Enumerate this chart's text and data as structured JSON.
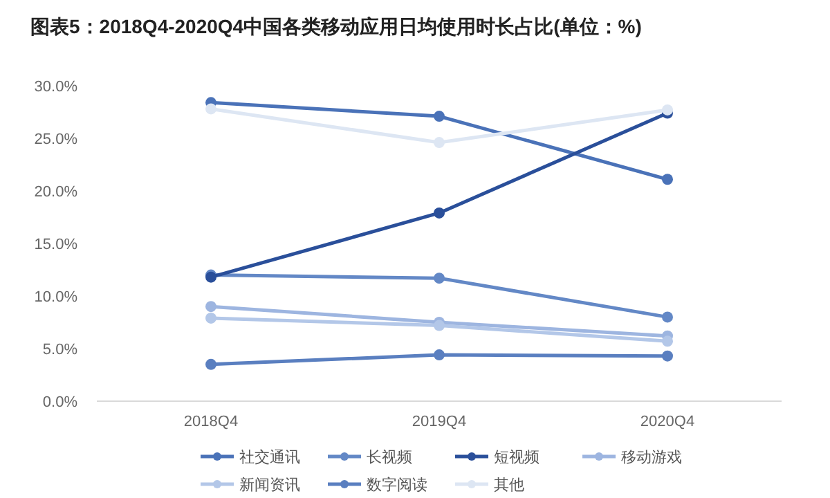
{
  "chart_data": {
    "type": "line",
    "title": "图表5：2018Q4-2020Q4中国各类移动应用日均使用时长占比(单位：%)",
    "categories": [
      "2018Q4",
      "2019Q4",
      "2020Q4"
    ],
    "series": [
      {
        "name": "社交通讯",
        "color": "#4a72b8",
        "values": [
          28.4,
          27.1,
          21.1
        ]
      },
      {
        "name": "长视频",
        "color": "#6388c6",
        "values": [
          12.0,
          11.7,
          8.0
        ]
      },
      {
        "name": "短视频",
        "color": "#2a4f9a",
        "values": [
          11.8,
          17.9,
          27.4
        ]
      },
      {
        "name": "移动游戏",
        "color": "#9db5e0",
        "values": [
          9.0,
          7.5,
          6.2
        ]
      },
      {
        "name": "新闻资讯",
        "color": "#b3c7e8",
        "values": [
          7.9,
          7.2,
          5.7
        ]
      },
      {
        "name": "数字阅读",
        "color": "#5a7fc0",
        "values": [
          3.5,
          4.4,
          4.3
        ]
      },
      {
        "name": "其他",
        "color": "#dde6f3",
        "values": [
          27.8,
          24.6,
          27.7
        ]
      }
    ],
    "ylim": [
      0,
      30
    ],
    "yticks": [
      {
        "value": 0,
        "label": "0.0%"
      },
      {
        "value": 5,
        "label": "5.0%"
      },
      {
        "value": 10,
        "label": "10.0%"
      },
      {
        "value": 15,
        "label": "15.0%"
      },
      {
        "value": 20,
        "label": "20.0%"
      },
      {
        "value": 25,
        "label": "25.0%"
      },
      {
        "value": 30,
        "label": "30.0%"
      }
    ],
    "grid": false,
    "legend": "bottom",
    "marker": "circle",
    "line_style": "solid"
  }
}
